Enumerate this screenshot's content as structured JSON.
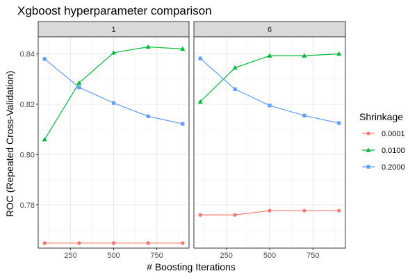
{
  "chart_data": {
    "type": "line",
    "title": "Xgboost hyperparameter comparison",
    "xlabel": "# Boosting Iterations",
    "ylabel": "ROC (Repeated Cross-Validation)",
    "x": [
      100,
      300,
      500,
      700,
      900
    ],
    "x_ticks": [
      "250",
      "500",
      "750"
    ],
    "y_ticks": [
      "0.78",
      "0.80",
      "0.82",
      "0.84"
    ],
    "xlim": [
      63,
      937
    ],
    "ylim": [
      0.7628,
      0.8468
    ],
    "grid": true,
    "legend_position": "right",
    "legend_title": "Shrinkage",
    "panels": [
      {
        "label": "1",
        "series": [
          {
            "name": "0.0001",
            "color": "#F8766D",
            "marker": "circle",
            "values": [
              0.7648,
              0.7648,
              0.7648,
              0.7648,
              0.7648
            ]
          },
          {
            "name": "0.0100",
            "color": "#00BA38",
            "marker": "triangle",
            "values": [
              0.806,
              0.8285,
              0.8405,
              0.8428,
              0.842
            ]
          },
          {
            "name": "0.2000",
            "color": "#619CFF",
            "marker": "square",
            "values": [
              0.838,
              0.8267,
              0.8205,
              0.8152,
              0.8122
            ]
          }
        ]
      },
      {
        "label": "6",
        "series": [
          {
            "name": "0.0001",
            "color": "#F8766D",
            "marker": "circle",
            "values": [
              0.776,
              0.776,
              0.7777,
              0.7777,
              0.7777
            ]
          },
          {
            "name": "0.0100",
            "color": "#00BA38",
            "marker": "triangle",
            "values": [
              0.821,
              0.8345,
              0.8393,
              0.8393,
              0.84
            ]
          },
          {
            "name": "0.2000",
            "color": "#619CFF",
            "marker": "square",
            "values": [
              0.8382,
              0.826,
              0.8195,
              0.8155,
              0.8125
            ]
          }
        ]
      }
    ]
  }
}
